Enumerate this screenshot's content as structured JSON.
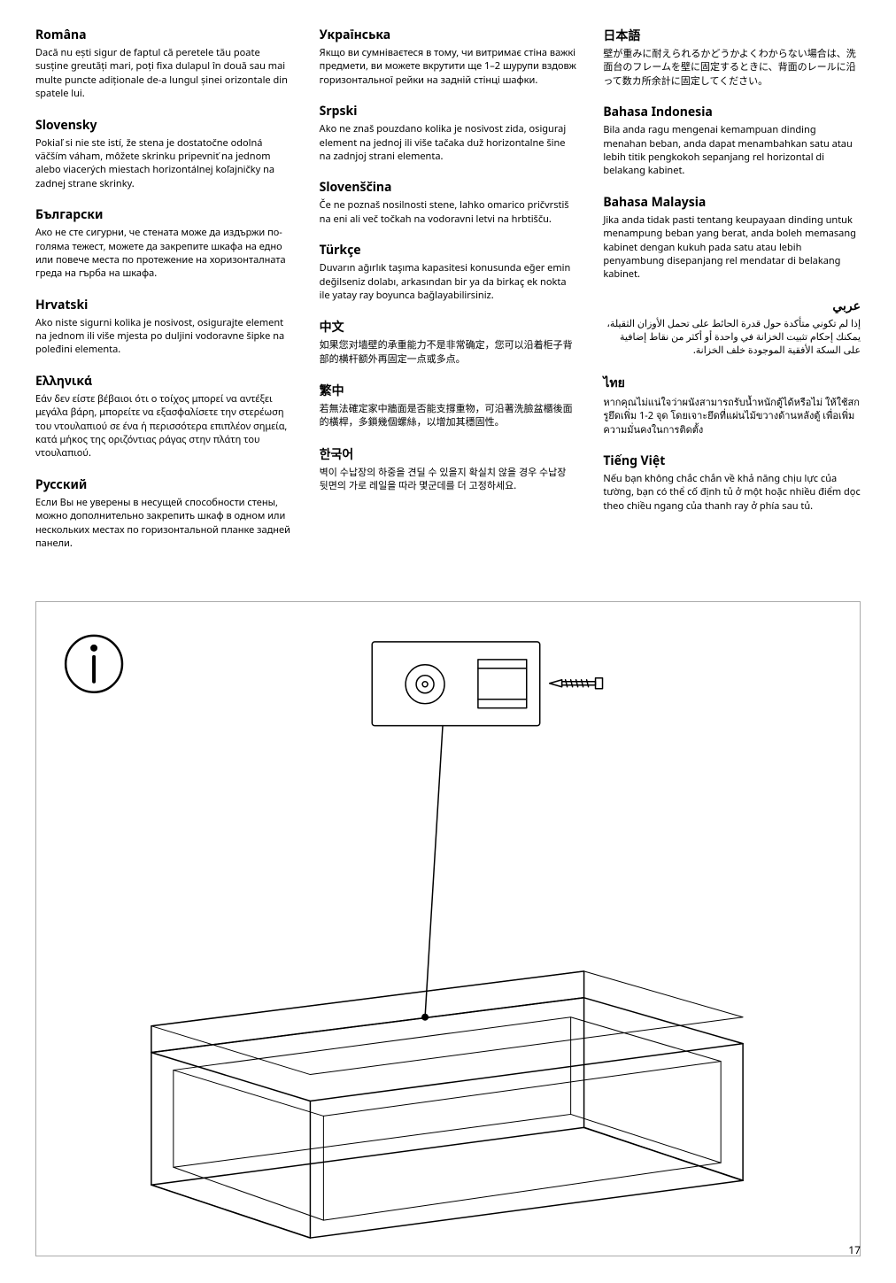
{
  "columns": [
    [
      {
        "lang": "Româna",
        "text": "Dacă nu ești sigur de faptul că peretele tău poate susține greutăți mari, poți fixa dulapul în două sau mai multe puncte adiționale de-a lungul șinei orizontale din spatele lui."
      },
      {
        "lang": "Slovensky",
        "text": "Pokiaľ si nie ste istí, že stena je dostatočne odolná väčším váham, môžete skrinku pripevniť na jednom alebo viacerých miestach horizontálnej koľajničky na zadnej strane skrinky."
      },
      {
        "lang": "Български",
        "text": "Ако не сте сигурни, че стената може да издържи по-голяма тежест, можете да закрепите шкафа на едно или повече места по протежение на хоризонталната греда на гърба на шкафа."
      },
      {
        "lang": "Hrvatski",
        "text": "Ako niste sigurni kolika je nosivost, osigurajte element na jednom ili više mjesta po duljini vodoravne šipke na poleđini elementa."
      },
      {
        "lang": "Ελληνικά",
        "text": "Εάν δεν είστε βέβαιοι ότι ο τοίχος μπορεί να αντέξει μεγάλα βάρη, μπορείτε να εξασφαλίσετε την στερέωση του ντουλαπιού σε ένα ή περισσότερα επιπλέον σημεία, κατά μήκος της οριζόντιας ράγας στην πλάτη του ντουλαπιού."
      },
      {
        "lang": "Русский",
        "text": "Если Вы не уверены в несущей способности стены, можно дополнительно закрепить шкаф в одном или нескольких местах по горизонтальной планке задней панели."
      }
    ],
    [
      {
        "lang": "Українська",
        "text": "Якщо ви сумніваєтеся в тому, чи витримає стіна важкі предмети, ви можете вкрутити ще 1–2 шурупи вздовж горизонтальної рейки на задній стінці шафки."
      },
      {
        "lang": "Srpski",
        "text": "Ako ne znaš pouzdano kolika je nosivost zida, osiguraj element na jednoj ili više tačaka duž horizontalne šine na zadnjoj strani elementa."
      },
      {
        "lang": "Slovenščina",
        "text": "Če ne poznaš nosilnosti stene, lahko omarico pričvrstiš na eni ali več točkah na vodoravni letvi na hrbtišču."
      },
      {
        "lang": "Türkçe",
        "text": "Duvarın ağırlık taşıma kapasitesi konusunda eğer emin değilseniz dolabı, arkasından bir ya da birkaç ek nokta ile yatay ray boyunca bağlayabilirsiniz."
      },
      {
        "lang": "中文",
        "text": "如果您对墙壁的承重能力不是非常确定，您可以沿着柜子背部的横杆额外再固定一点或多点。"
      },
      {
        "lang": "繁中",
        "text": "若無法確定家中牆面是否能支撐重物，可沿著洗臉盆櫃後面的橫桿，多鎖幾個螺絲，以增加其穩固性。"
      },
      {
        "lang": "한국어",
        "text": "벽이 수납장의 하중을 견딜 수 있을지 확실치 않을 경우 수납장 뒷면의 가로 레일을 따라 몇군데를 더 고정하세요."
      }
    ],
    [
      {
        "lang": "日本語",
        "text": "壁が重みに耐えられるかどうかよくわからない場合は、洗面台のフレームを壁に固定するときに、背面のレールに沿って数カ所余計に固定してください。"
      },
      {
        "lang": "Bahasa Indonesia",
        "text": "Bila anda ragu mengenai kemampuan dinding menahan beban, anda dapat menambahkan satu atau lebih titik pengkokoh sepanjang rel horizontal di belakang kabinet."
      },
      {
        "lang": "Bahasa Malaysia",
        "text": "Jika anda tidak pasti tentang keupayaan dinding untuk menampung beban yang berat, anda boleh memasang kabinet dengan kukuh pada satu atau lebih penyambung disepanjang rel mendatar di belakang kabinet."
      },
      {
        "lang": "عربي",
        "text": "إذا لم تكوني متأكدة حول قدرة الحائط على تحمل الأوزان الثقيلة، يمكنك إحكام تثبيت الخزانة في واحدة أو أكثر من نقاط إضافية على السكة الأفقية الموجودة خلف الخزانة.",
        "rtl": true
      },
      {
        "lang": "ไทย",
        "text": "หากคุณไม่แน่ใจว่าผนังสามารถรับน้ำหนักตู้ได้หรือไม่ ให้ใช้สกรูยึดเพิ่ม 1-2 จุด โดยเจาะยึดที่แผ่นไม้ขวางด้านหลังตู้ เพื่อเพิ่มความมั่นคงในการติดตั้ง"
      },
      {
        "lang": "Tiếng Việt",
        "text": "Nếu bạn không chắc chắn về khả năng chịu lực của tường, bạn có thể cố định tủ ở một hoặc nhiều điểm dọc theo chiều ngang của thanh ray ở phía sau tủ."
      }
    ]
  ],
  "pageNumber": "17"
}
